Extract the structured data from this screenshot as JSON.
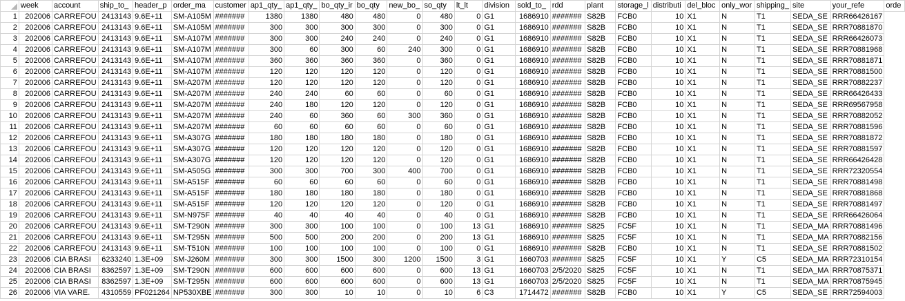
{
  "columns": [
    "week",
    "account",
    "ship_to_",
    "header_p",
    "order_ma",
    "customer",
    "ap1_qty_",
    "ap1_qty_",
    "bo_qty_ir",
    "bo_qty",
    "new_bo_",
    "so_qty",
    "lt_lt",
    "division",
    "sold_to_",
    "rdd",
    "plant",
    "storage_l",
    "distributi",
    "del_bloc",
    "only_wor",
    "shipping_",
    "site",
    "your_refe",
    "orde"
  ],
  "rows": [
    [
      "1",
      "202006",
      "CARREFOU",
      "2413143",
      "9.6E+11",
      "SM-A105M",
      "#######",
      "1380",
      "1380",
      "480",
      "480",
      "0",
      "480",
      "0",
      "G1",
      "1686910",
      "#######",
      "S82B",
      "FCB0",
      "10",
      "X1",
      "N",
      "T1",
      "SEDA_SE",
      "RRR66426167"
    ],
    [
      "2",
      "202006",
      "CARREFOU",
      "2413143",
      "9.6E+11",
      "SM-A105M",
      "#######",
      "300",
      "300",
      "300",
      "300",
      "0",
      "300",
      "0",
      "G1",
      "1686910",
      "#######",
      "S82B",
      "FCB0",
      "10",
      "X1",
      "N",
      "T1",
      "SEDA_SE",
      "RRR70881870"
    ],
    [
      "3",
      "202006",
      "CARREFOU",
      "2413143",
      "9.6E+11",
      "SM-A107M",
      "#######",
      "300",
      "300",
      "240",
      "240",
      "0",
      "240",
      "0",
      "G1",
      "1686910",
      "#######",
      "S82B",
      "FCB0",
      "10",
      "X1",
      "N",
      "T1",
      "SEDA_SE",
      "RRR66426073"
    ],
    [
      "4",
      "202006",
      "CARREFOU",
      "2413143",
      "9.6E+11",
      "SM-A107M",
      "#######",
      "300",
      "60",
      "300",
      "60",
      "240",
      "300",
      "0",
      "G1",
      "1686910",
      "#######",
      "S82B",
      "FCB0",
      "10",
      "X1",
      "N",
      "T1",
      "SEDA_SE",
      "RRR70881968"
    ],
    [
      "5",
      "202006",
      "CARREFOU",
      "2413143",
      "9.6E+11",
      "SM-A107M",
      "#######",
      "360",
      "360",
      "360",
      "360",
      "0",
      "360",
      "0",
      "G1",
      "1686910",
      "#######",
      "S82B",
      "FCB0",
      "10",
      "X1",
      "N",
      "T1",
      "SEDA_SE",
      "RRR70881871"
    ],
    [
      "6",
      "202006",
      "CARREFOU",
      "2413143",
      "9.6E+11",
      "SM-A107M",
      "#######",
      "120",
      "120",
      "120",
      "120",
      "0",
      "120",
      "0",
      "G1",
      "1686910",
      "#######",
      "S82B",
      "FCB0",
      "10",
      "X1",
      "N",
      "T1",
      "SEDA_SE",
      "RRR70881500"
    ],
    [
      "7",
      "202006",
      "CARREFOU",
      "2413143",
      "9.6E+11",
      "SM-A207M",
      "#######",
      "120",
      "120",
      "120",
      "120",
      "0",
      "120",
      "0",
      "G1",
      "1686910",
      "#######",
      "S82B",
      "FCB0",
      "10",
      "X1",
      "N",
      "T1",
      "SEDA_SE",
      "RRR70882237"
    ],
    [
      "8",
      "202006",
      "CARREFOU",
      "2413143",
      "9.6E+11",
      "SM-A207M",
      "#######",
      "240",
      "240",
      "60",
      "60",
      "0",
      "60",
      "0",
      "G1",
      "1686910",
      "#######",
      "S82B",
      "FCB0",
      "10",
      "X1",
      "N",
      "T1",
      "SEDA_SE",
      "RRR66426433"
    ],
    [
      "9",
      "202006",
      "CARREFOU",
      "2413143",
      "9.6E+11",
      "SM-A207M",
      "#######",
      "240",
      "180",
      "120",
      "120",
      "0",
      "120",
      "0",
      "G1",
      "1686910",
      "#######",
      "S82B",
      "FCB0",
      "10",
      "X1",
      "N",
      "T1",
      "SEDA_SE",
      "RRR69567958"
    ],
    [
      "10",
      "202006",
      "CARREFOU",
      "2413143",
      "9.6E+11",
      "SM-A207M",
      "#######",
      "240",
      "60",
      "360",
      "60",
      "300",
      "360",
      "0",
      "G1",
      "1686910",
      "#######",
      "S82B",
      "FCB0",
      "10",
      "X1",
      "N",
      "T1",
      "SEDA_SE",
      "RRR70882052"
    ],
    [
      "11",
      "202006",
      "CARREFOU",
      "2413143",
      "9.6E+11",
      "SM-A207M",
      "#######",
      "60",
      "60",
      "60",
      "60",
      "0",
      "60",
      "0",
      "G1",
      "1686910",
      "#######",
      "S82B",
      "FCB0",
      "10",
      "X1",
      "N",
      "T1",
      "SEDA_SE",
      "RRR70881596"
    ],
    [
      "12",
      "202006",
      "CARREFOU",
      "2413143",
      "9.6E+11",
      "SM-A307G",
      "#######",
      "180",
      "180",
      "180",
      "180",
      "0",
      "180",
      "0",
      "G1",
      "1686910",
      "#######",
      "S82B",
      "FCB0",
      "10",
      "X1",
      "N",
      "T1",
      "SEDA_SE",
      "RRR70881872"
    ],
    [
      "13",
      "202006",
      "CARREFOU",
      "2413143",
      "9.6E+11",
      "SM-A307G",
      "#######",
      "120",
      "120",
      "120",
      "120",
      "0",
      "120",
      "0",
      "G1",
      "1686910",
      "#######",
      "S82B",
      "FCB0",
      "10",
      "X1",
      "N",
      "T1",
      "SEDA_SE",
      "RRR70881597"
    ],
    [
      "14",
      "202006",
      "CARREFOU",
      "2413143",
      "9.6E+11",
      "SM-A307G",
      "#######",
      "120",
      "120",
      "120",
      "120",
      "0",
      "120",
      "0",
      "G1",
      "1686910",
      "#######",
      "S82B",
      "FCB0",
      "10",
      "X1",
      "N",
      "T1",
      "SEDA_SE",
      "RRR66426428"
    ],
    [
      "15",
      "202006",
      "CARREFOU",
      "2413143",
      "9.6E+11",
      "SM-A505G",
      "#######",
      "300",
      "300",
      "700",
      "300",
      "400",
      "700",
      "0",
      "G1",
      "1686910",
      "#######",
      "S82B",
      "FCB0",
      "10",
      "X1",
      "N",
      "T1",
      "SEDA_SE",
      "RRR72320554"
    ],
    [
      "16",
      "202006",
      "CARREFOU",
      "2413143",
      "9.6E+11",
      "SM-A515F",
      "#######",
      "60",
      "60",
      "60",
      "60",
      "0",
      "60",
      "0",
      "G1",
      "1686910",
      "#######",
      "S82B",
      "FCB0",
      "10",
      "X1",
      "N",
      "T1",
      "SEDA_SE",
      "RRR70881498"
    ],
    [
      "17",
      "202006",
      "CARREFOU",
      "2413143",
      "9.6E+11",
      "SM-A515F",
      "#######",
      "180",
      "180",
      "180",
      "180",
      "0",
      "180",
      "0",
      "G1",
      "1686910",
      "#######",
      "S82B",
      "FCB0",
      "10",
      "X1",
      "N",
      "T1",
      "SEDA_SE",
      "RRR70881868"
    ],
    [
      "18",
      "202006",
      "CARREFOU",
      "2413143",
      "9.6E+11",
      "SM-A515F",
      "#######",
      "120",
      "120",
      "120",
      "120",
      "0",
      "120",
      "0",
      "G1",
      "1686910",
      "#######",
      "S82B",
      "FCB0",
      "10",
      "X1",
      "N",
      "T1",
      "SEDA_SE",
      "RRR70881497"
    ],
    [
      "19",
      "202006",
      "CARREFOU",
      "2413143",
      "9.6E+11",
      "SM-N975F",
      "#######",
      "40",
      "40",
      "40",
      "40",
      "0",
      "40",
      "0",
      "G1",
      "1686910",
      "#######",
      "S82B",
      "FCB0",
      "10",
      "X1",
      "N",
      "T1",
      "SEDA_SE",
      "RRR66426064"
    ],
    [
      "20",
      "202006",
      "CARREFOU",
      "2413143",
      "9.6E+11",
      "SM-T290N",
      "#######",
      "300",
      "300",
      "100",
      "100",
      "0",
      "100",
      "13",
      "G1",
      "1686910",
      "#######",
      "S825",
      "FC5F",
      "10",
      "X1",
      "N",
      "T1",
      "SEDA_MA",
      "RRR70881496"
    ],
    [
      "21",
      "202006",
      "CARREFOU",
      "2413143",
      "9.6E+11",
      "SM-T295N",
      "#######",
      "500",
      "500",
      "200",
      "200",
      "0",
      "200",
      "13",
      "G1",
      "1686910",
      "#######",
      "S825",
      "FC5F",
      "10",
      "X1",
      "N",
      "T1",
      "SEDA_MA",
      "RRR70882156"
    ],
    [
      "22",
      "202006",
      "CARREFOU",
      "2413143",
      "9.6E+11",
      "SM-T510N",
      "#######",
      "100",
      "100",
      "100",
      "100",
      "0",
      "100",
      "0",
      "G1",
      "1686910",
      "#######",
      "S82B",
      "FCB0",
      "10",
      "X1",
      "N",
      "T1",
      "SEDA_SE",
      "RRR70881502"
    ],
    [
      "23",
      "202006",
      "CIA BRASI",
      "6233240",
      "1.3E+09",
      "SM-J260M",
      "#######",
      "300",
      "300",
      "1500",
      "300",
      "1200",
      "1500",
      "3",
      "G1",
      "1660703",
      "#######",
      "S825",
      "FC5F",
      "10",
      "X1",
      "Y",
      "C5",
      "SEDA_MA",
      "RRR72310154"
    ],
    [
      "24",
      "202006",
      "CIA BRASI",
      "8362597",
      "1.3E+09",
      "SM-T290N",
      "#######",
      "600",
      "600",
      "600",
      "600",
      "0",
      "600",
      "13",
      "G1",
      "1660703",
      "2/5/2020",
      "S825",
      "FC5F",
      "10",
      "X1",
      "N",
      "T1",
      "SEDA_MA",
      "RRR70875371"
    ],
    [
      "25",
      "202006",
      "CIA BRASI",
      "8362597",
      "1.3E+09",
      "SM-T295N",
      "#######",
      "600",
      "600",
      "600",
      "600",
      "0",
      "600",
      "13",
      "G1",
      "1660703",
      "2/5/2020",
      "S825",
      "FC5F",
      "10",
      "X1",
      "N",
      "T1",
      "SEDA_MA",
      "RRR70875945"
    ],
    [
      "26",
      "202006",
      "VIA VARE.",
      "4310559",
      "PF021264",
      "NP530XBE",
      "#######",
      "300",
      "300",
      "10",
      "10",
      "0",
      "10",
      "6",
      "C3",
      "1714472",
      "#######",
      "S82B",
      "FCB0",
      "10",
      "X1",
      "Y",
      "C5",
      "SEDA_SE",
      "RRR72594003"
    ]
  ]
}
